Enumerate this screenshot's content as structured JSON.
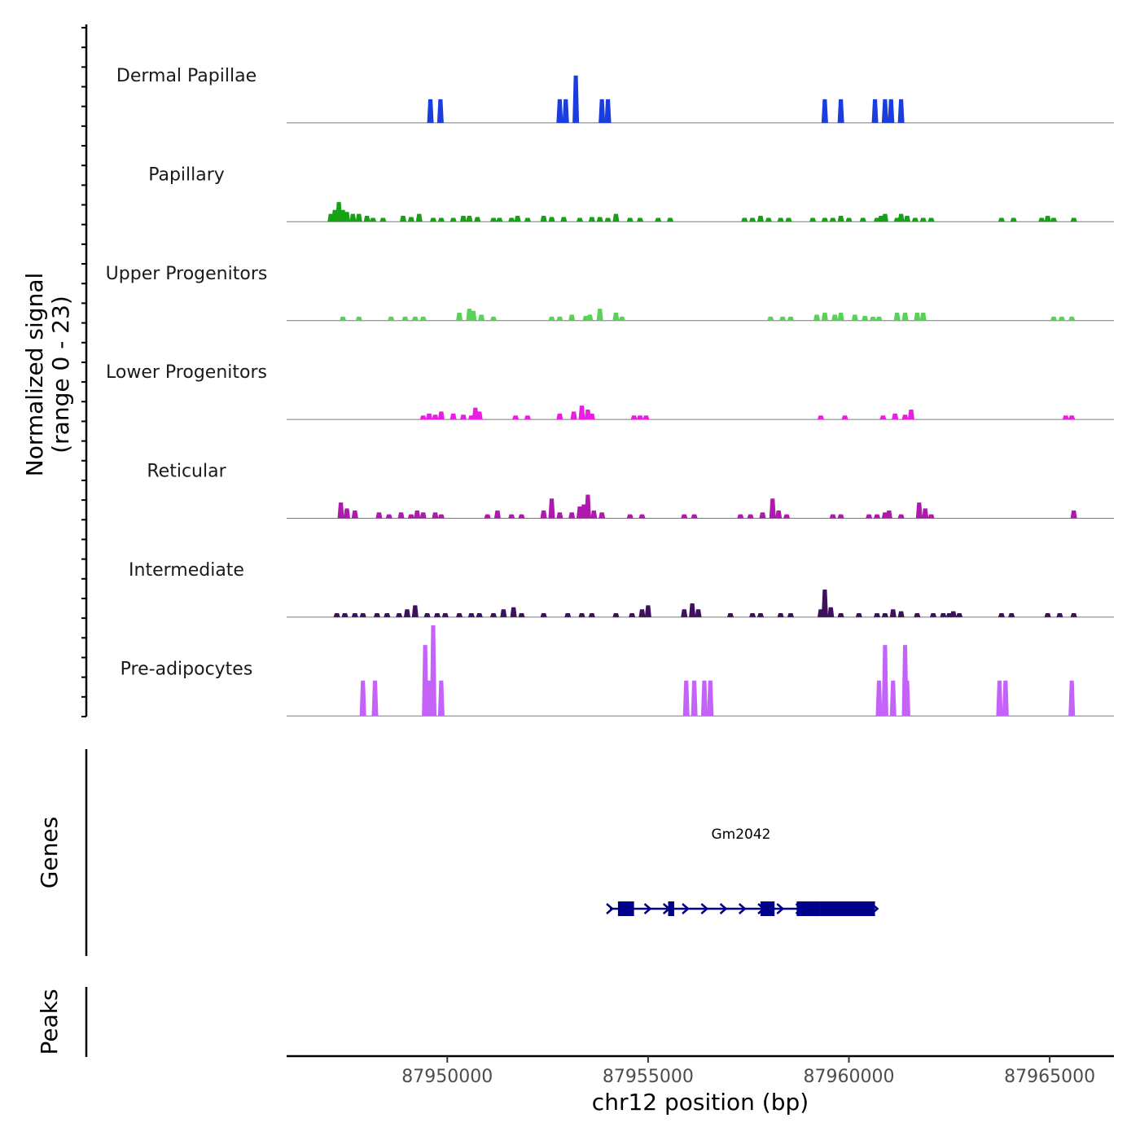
{
  "chart_data": {
    "type": "area",
    "title": "",
    "y_title": "Normalized signal",
    "y_subtitle": "(range 0 - 23)",
    "ylim": [
      0,
      23
    ],
    "x_label": "chr12 position (bp)",
    "x_range": [
      87946000,
      87966600
    ],
    "x_ticks": [
      {
        "value": 87950000,
        "label": "87950000"
      },
      {
        "value": 87955000,
        "label": "87955000"
      },
      {
        "value": 87960000,
        "label": "87960000"
      },
      {
        "value": 87965000,
        "label": "87965000"
      }
    ],
    "tracks": [
      {
        "name": "Dermal Papillae",
        "color": "#1a3de0",
        "peaks": [
          [
            87949580,
            6
          ],
          [
            87949830,
            6
          ],
          [
            87952800,
            6
          ],
          [
            87952950,
            6
          ],
          [
            87953200,
            12
          ],
          [
            87953850,
            6
          ],
          [
            87954000,
            6
          ],
          [
            87959400,
            6
          ],
          [
            87959800,
            6
          ],
          [
            87960650,
            6
          ],
          [
            87960900,
            6
          ],
          [
            87961050,
            6
          ],
          [
            87961300,
            6
          ]
        ]
      },
      {
        "name": "Papillary",
        "color": "#15a215",
        "peaks": [
          [
            87947100,
            2
          ],
          [
            87947200,
            3
          ],
          [
            87947300,
            5
          ],
          [
            87947400,
            3
          ],
          [
            87947500,
            2.5
          ],
          [
            87947650,
            2
          ],
          [
            87947800,
            2
          ],
          [
            87948000,
            1.5
          ],
          [
            87948150,
            1
          ],
          [
            87948400,
            1
          ],
          [
            87948900,
            1.5
          ],
          [
            87949100,
            1.2
          ],
          [
            87949300,
            2
          ],
          [
            87949650,
            1
          ],
          [
            87949850,
            1
          ],
          [
            87950150,
            1
          ],
          [
            87950400,
            1.5
          ],
          [
            87950550,
            1.5
          ],
          [
            87950750,
            1.2
          ],
          [
            87951150,
            1
          ],
          [
            87951300,
            1
          ],
          [
            87951600,
            1
          ],
          [
            87951750,
            1.5
          ],
          [
            87952000,
            1
          ],
          [
            87952400,
            1.5
          ],
          [
            87952600,
            1.2
          ],
          [
            87952900,
            1.2
          ],
          [
            87953300,
            1
          ],
          [
            87953600,
            1.2
          ],
          [
            87953800,
            1.2
          ],
          [
            87954000,
            1
          ],
          [
            87954200,
            2
          ],
          [
            87954550,
            1
          ],
          [
            87954800,
            1
          ],
          [
            87955250,
            1
          ],
          [
            87955550,
            1
          ],
          [
            87957400,
            1
          ],
          [
            87957600,
            1
          ],
          [
            87957800,
            1.5
          ],
          [
            87958000,
            1
          ],
          [
            87958300,
            1
          ],
          [
            87958500,
            1
          ],
          [
            87959100,
            1
          ],
          [
            87959400,
            1
          ],
          [
            87959600,
            1
          ],
          [
            87959800,
            1.5
          ],
          [
            87960000,
            1
          ],
          [
            87960350,
            1
          ],
          [
            87960700,
            1
          ],
          [
            87960800,
            1.5
          ],
          [
            87960900,
            2
          ],
          [
            87961200,
            1
          ],
          [
            87961300,
            2
          ],
          [
            87961450,
            1.5
          ],
          [
            87961650,
            1
          ],
          [
            87961850,
            1
          ],
          [
            87962050,
            1
          ],
          [
            87963800,
            1
          ],
          [
            87964100,
            1
          ],
          [
            87964800,
            1
          ],
          [
            87964950,
            1.5
          ],
          [
            87965100,
            1
          ],
          [
            87965600,
            1
          ]
        ]
      },
      {
        "name": "Upper Progenitors",
        "color": "#5ad25a",
        "peaks": [
          [
            87947400,
            1
          ],
          [
            87947800,
            1
          ],
          [
            87948600,
            1
          ],
          [
            87948950,
            1
          ],
          [
            87949200,
            1
          ],
          [
            87949400,
            1
          ],
          [
            87950300,
            2
          ],
          [
            87950550,
            3
          ],
          [
            87950650,
            2.5
          ],
          [
            87950850,
            1.5
          ],
          [
            87951150,
            1
          ],
          [
            87952600,
            1
          ],
          [
            87952800,
            1
          ],
          [
            87953100,
            1.5
          ],
          [
            87953450,
            1.2
          ],
          [
            87953550,
            1.5
          ],
          [
            87953800,
            3
          ],
          [
            87954200,
            2
          ],
          [
            87954350,
            1
          ],
          [
            87958050,
            1
          ],
          [
            87958350,
            1
          ],
          [
            87958550,
            1
          ],
          [
            87959200,
            1.5
          ],
          [
            87959400,
            2
          ],
          [
            87959650,
            1.5
          ],
          [
            87959800,
            2
          ],
          [
            87960150,
            1.5
          ],
          [
            87960400,
            1.2
          ],
          [
            87960600,
            1
          ],
          [
            87960750,
            1
          ],
          [
            87961200,
            2
          ],
          [
            87961400,
            2
          ],
          [
            87961700,
            2
          ],
          [
            87961850,
            2
          ],
          [
            87965100,
            1
          ],
          [
            87965300,
            1
          ],
          [
            87965550,
            1
          ]
        ]
      },
      {
        "name": "Lower Progenitors",
        "color": "#e81ee0",
        "peaks": [
          [
            87949400,
            1
          ],
          [
            87949550,
            1.5
          ],
          [
            87949700,
            1.2
          ],
          [
            87949850,
            2
          ],
          [
            87950150,
            1.5
          ],
          [
            87950400,
            1.2
          ],
          [
            87950600,
            1
          ],
          [
            87950700,
            3
          ],
          [
            87950800,
            2
          ],
          [
            87951700,
            1
          ],
          [
            87952000,
            1
          ],
          [
            87952800,
            1.5
          ],
          [
            87953150,
            2
          ],
          [
            87953350,
            3.5
          ],
          [
            87953500,
            2.5
          ],
          [
            87953600,
            1.5
          ],
          [
            87954650,
            1
          ],
          [
            87954800,
            1
          ],
          [
            87954950,
            1
          ],
          [
            87959300,
            1
          ],
          [
            87959900,
            1
          ],
          [
            87960850,
            1
          ],
          [
            87961150,
            1.5
          ],
          [
            87961400,
            1.2
          ],
          [
            87961550,
            2.5
          ],
          [
            87965400,
            1
          ],
          [
            87965550,
            1
          ]
        ]
      },
      {
        "name": "Reticular",
        "color": "#ad1aad",
        "peaks": [
          [
            87947350,
            4
          ],
          [
            87947500,
            2.5
          ],
          [
            87947700,
            2
          ],
          [
            87948300,
            1.5
          ],
          [
            87948550,
            1
          ],
          [
            87948850,
            1.5
          ],
          [
            87949100,
            1
          ],
          [
            87949250,
            2
          ],
          [
            87949400,
            1.5
          ],
          [
            87949700,
            1.5
          ],
          [
            87949850,
            1
          ],
          [
            87951000,
            1
          ],
          [
            87951250,
            2
          ],
          [
            87951600,
            1
          ],
          [
            87951850,
            1
          ],
          [
            87952400,
            2
          ],
          [
            87952600,
            5
          ],
          [
            87952800,
            1.5
          ],
          [
            87953100,
            1.5
          ],
          [
            87953300,
            3
          ],
          [
            87953400,
            3.5
          ],
          [
            87953500,
            6
          ],
          [
            87953650,
            2
          ],
          [
            87953850,
            1.5
          ],
          [
            87954550,
            1
          ],
          [
            87954850,
            1
          ],
          [
            87955900,
            1
          ],
          [
            87956150,
            1
          ],
          [
            87957300,
            1
          ],
          [
            87957550,
            1
          ],
          [
            87957850,
            1.5
          ],
          [
            87958100,
            5
          ],
          [
            87958250,
            2
          ],
          [
            87958450,
            1
          ],
          [
            87959600,
            1
          ],
          [
            87959800,
            1
          ],
          [
            87960500,
            1
          ],
          [
            87960700,
            1
          ],
          [
            87960900,
            1.5
          ],
          [
            87961000,
            2
          ],
          [
            87961300,
            1
          ],
          [
            87961750,
            4
          ],
          [
            87961900,
            2.5
          ],
          [
            87962050,
            1
          ],
          [
            87965600,
            2
          ]
        ]
      },
      {
        "name": "Intermediate",
        "color": "#3e1060",
        "peaks": [
          [
            87947250,
            1
          ],
          [
            87947450,
            1
          ],
          [
            87947700,
            1
          ],
          [
            87947900,
            1
          ],
          [
            87948250,
            1
          ],
          [
            87948500,
            1
          ],
          [
            87948800,
            1
          ],
          [
            87949000,
            2
          ],
          [
            87949200,
            3
          ],
          [
            87949500,
            1
          ],
          [
            87949750,
            1
          ],
          [
            87949950,
            1
          ],
          [
            87950300,
            1
          ],
          [
            87950600,
            1
          ],
          [
            87950800,
            1
          ],
          [
            87951150,
            1
          ],
          [
            87951400,
            2
          ],
          [
            87951650,
            2.5
          ],
          [
            87951850,
            1
          ],
          [
            87952400,
            1
          ],
          [
            87953000,
            1
          ],
          [
            87953350,
            1
          ],
          [
            87953600,
            1
          ],
          [
            87954200,
            1
          ],
          [
            87954600,
            1
          ],
          [
            87954850,
            2
          ],
          [
            87955000,
            3
          ],
          [
            87955900,
            2
          ],
          [
            87956100,
            3.5
          ],
          [
            87956250,
            2
          ],
          [
            87957050,
            1
          ],
          [
            87957600,
            1
          ],
          [
            87957800,
            1
          ],
          [
            87958300,
            1
          ],
          [
            87958550,
            1
          ],
          [
            87959300,
            2
          ],
          [
            87959400,
            7
          ],
          [
            87959550,
            2.5
          ],
          [
            87959800,
            1
          ],
          [
            87960250,
            1
          ],
          [
            87960700,
            1
          ],
          [
            87960900,
            1
          ],
          [
            87961100,
            2
          ],
          [
            87961300,
            1.5
          ],
          [
            87961700,
            1
          ],
          [
            87962100,
            1
          ],
          [
            87962350,
            1
          ],
          [
            87962500,
            1
          ],
          [
            87962600,
            1.5
          ],
          [
            87962750,
            1
          ],
          [
            87963800,
            1
          ],
          [
            87964050,
            1
          ],
          [
            87964950,
            1
          ],
          [
            87965250,
            1
          ],
          [
            87965600,
            1
          ]
        ]
      },
      {
        "name": "Pre-adipocytes",
        "color": "#c462fa",
        "peaks": [
          [
            87947900,
            9
          ],
          [
            87948200,
            9
          ],
          [
            87949450,
            18
          ],
          [
            87949550,
            9
          ],
          [
            87949650,
            23
          ],
          [
            87949850,
            9
          ],
          [
            87955950,
            9
          ],
          [
            87956150,
            9
          ],
          [
            87956400,
            9
          ],
          [
            87956550,
            9
          ],
          [
            87960750,
            9
          ],
          [
            87960900,
            18
          ],
          [
            87961100,
            9
          ],
          [
            87961400,
            18
          ],
          [
            87961450,
            9
          ],
          [
            87963750,
            9
          ],
          [
            87963900,
            9
          ],
          [
            87965550,
            9
          ]
        ]
      }
    ],
    "genes_label": "Genes",
    "peaks_label": "Peaks",
    "gene": {
      "name": "Gm2042",
      "color": "#00008b",
      "start": 87954050,
      "end": 87960650,
      "exons": [
        [
          87954250,
          87954650
        ],
        [
          87955500,
          87955650
        ],
        [
          87957800,
          87958150
        ],
        [
          87958700,
          87959300
        ],
        [
          87959300,
          87960650
        ]
      ]
    }
  }
}
